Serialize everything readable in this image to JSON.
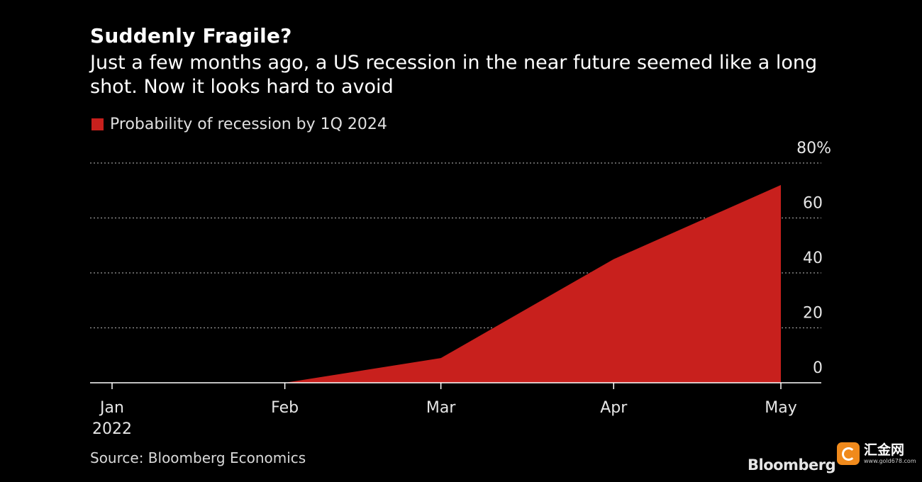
{
  "header": {
    "title": "Suddenly Fragile?",
    "subtitle": "Just a few months ago, a US recession in the near future seemed like a long shot. Now it looks hard to avoid"
  },
  "legend": {
    "label": "Probability of recession by 1Q 2024"
  },
  "footer": {
    "source": "Source: Bloomberg Economics",
    "brand": "Bloomberg"
  },
  "watermark": {
    "name": "汇金网",
    "url": "www.gold678.com"
  },
  "colors": {
    "background": "#000000",
    "area": "#c8201d",
    "grid": "#9a9a9a",
    "axis": "#ffffff"
  },
  "chart_data": {
    "type": "area",
    "title": "Suddenly Fragile?",
    "x": [
      "2022-01-01",
      "2022-02-01",
      "2022-03-01",
      "2022-04-01",
      "2022-05-01"
    ],
    "x_labels": [
      "Jan",
      "Feb",
      "Mar",
      "Apr",
      "May"
    ],
    "x_sublabel": "2022",
    "series": [
      {
        "name": "Probability of recession by 1Q 2024",
        "values": [
          0,
          0,
          9,
          45,
          72
        ]
      }
    ],
    "ylim": [
      0,
      80
    ],
    "y_ticks": [
      0,
      20,
      40,
      60,
      80
    ],
    "y_tick_labels": [
      "0",
      "20",
      "40",
      "60",
      "80%"
    ],
    "y_axis_side": "right",
    "grid": true,
    "legend_position": "top-left"
  }
}
